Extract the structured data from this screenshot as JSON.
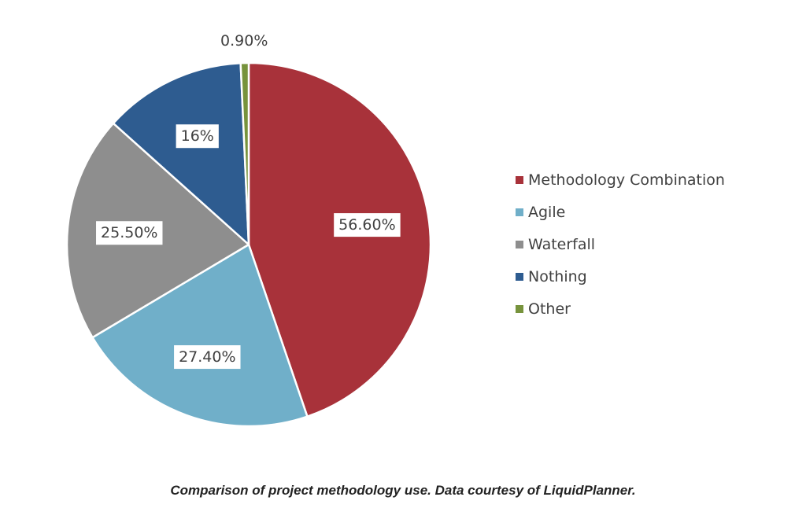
{
  "chart_data": {
    "type": "pie",
    "start_angle_deg": 0,
    "direction": "clockwise",
    "slices": [
      {
        "name": "Methodology Combination",
        "value": 56.6,
        "label": "56.60%",
        "color": "#A8323A"
      },
      {
        "name": "Agile",
        "value": 27.4,
        "label": "27.40%",
        "color": "#70AFC9"
      },
      {
        "name": "Waterfall",
        "value": 25.5,
        "label": "25.50%",
        "color": "#8E8E8E"
      },
      {
        "name": "Nothing",
        "value": 16,
        "label": "16%",
        "color": "#2E5C90"
      },
      {
        "name": "Other",
        "value": 0.9,
        "label": "0.90%",
        "color": "#77933C"
      }
    ],
    "legend": {
      "placement": "right",
      "entries": [
        "Methodology Combination",
        "Agile",
        "Waterfall",
        "Nothing",
        "Other"
      ]
    }
  },
  "caption": "Comparison of project methodology use. Data courtesy of LiquidPlanner."
}
